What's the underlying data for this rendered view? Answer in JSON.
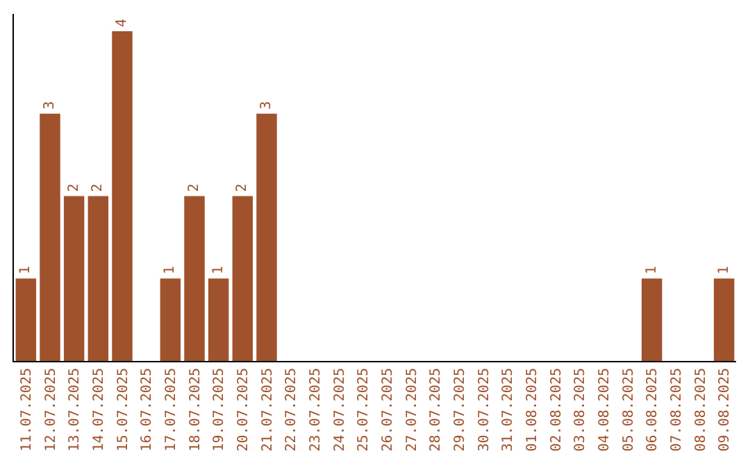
{
  "chart_data": {
    "type": "bar",
    "categories": [
      "11.07.2025",
      "12.07.2025",
      "13.07.2025",
      "14.07.2025",
      "15.07.2025",
      "16.07.2025",
      "17.07.2025",
      "18.07.2025",
      "19.07.2025",
      "20.07.2025",
      "21.07.2025",
      "22.07.2025",
      "23.07.2025",
      "24.07.2025",
      "25.07.2025",
      "26.07.2025",
      "27.07.2025",
      "28.07.2025",
      "29.07.2025",
      "30.07.2025",
      "31.07.2025",
      "01.08.2025",
      "02.08.2025",
      "03.08.2025",
      "04.08.2025",
      "05.08.2025",
      "06.08.2025",
      "07.08.2025",
      "08.08.2025",
      "09.08.2025"
    ],
    "values": [
      1,
      3,
      2,
      2,
      4,
      0,
      1,
      2,
      1,
      2,
      3,
      0,
      0,
      0,
      0,
      0,
      0,
      0,
      0,
      0,
      0,
      0,
      0,
      0,
      0,
      0,
      1,
      0,
      0,
      1
    ],
    "value_labels": [
      "1",
      "3",
      "2",
      "2",
      "4",
      null,
      "1",
      "2",
      "1",
      "2",
      "3",
      null,
      null,
      null,
      null,
      null,
      null,
      null,
      null,
      null,
      null,
      null,
      null,
      null,
      null,
      null,
      "1",
      null,
      null,
      "1"
    ],
    "color": "#a0522d",
    "tick_labels": "x",
    "grid": false,
    "legend": false
  }
}
